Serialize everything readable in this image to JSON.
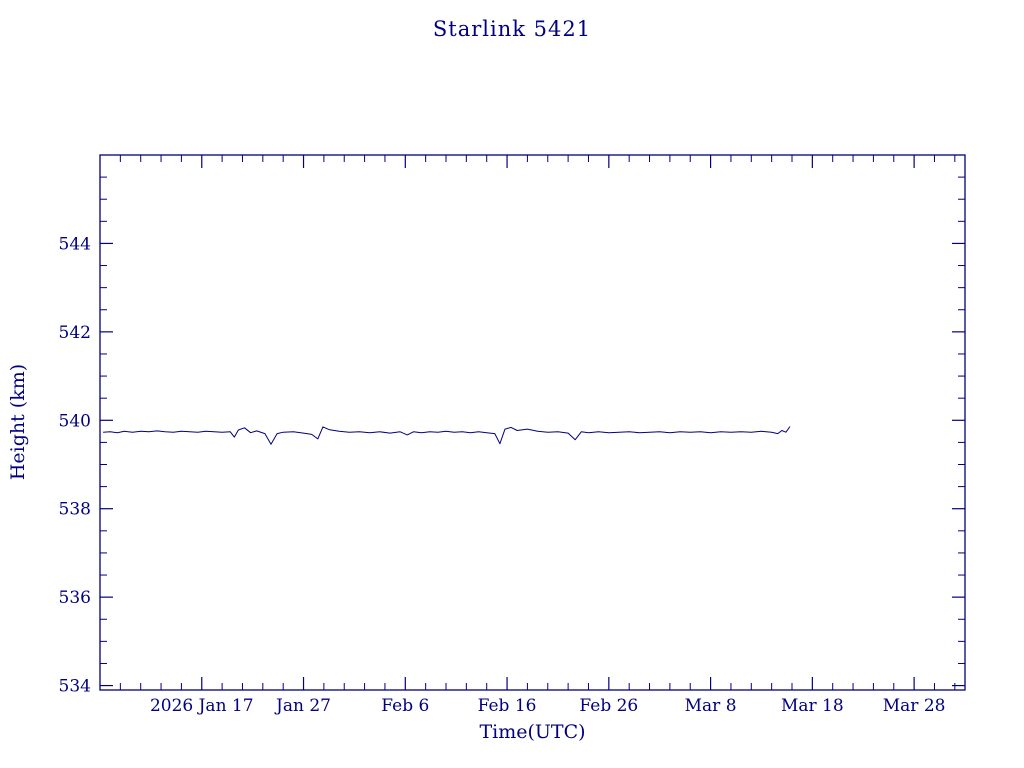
{
  "chart_data": {
    "type": "line",
    "title": "Starlink 5421",
    "xlabel": "Time(UTC)",
    "ylabel": "Height (km)",
    "line_color": "#000080",
    "background": "#ffffff",
    "grid": false,
    "legend": "none",
    "x_domain_days": [
      0,
      85
    ],
    "x_ticks": [
      {
        "day": 10,
        "label": "2026 Jan 17"
      },
      {
        "day": 20,
        "label": "Jan 27"
      },
      {
        "day": 30,
        "label": "Feb  6"
      },
      {
        "day": 40,
        "label": "Feb 16"
      },
      {
        "day": 50,
        "label": "Feb 26"
      },
      {
        "day": 60,
        "label": "Mar  8"
      },
      {
        "day": 70,
        "label": "Mar 18"
      },
      {
        "day": 80,
        "label": "Mar 28"
      }
    ],
    "x_minor_tick_days": 2,
    "ylim": [
      533.9,
      546.0
    ],
    "y_ticks": [
      534,
      536,
      538,
      540,
      542,
      544
    ],
    "y_minor_tick": 0.5,
    "series": [
      {
        "name": "height",
        "points": [
          [
            0.3,
            539.73
          ],
          [
            1.0,
            539.74
          ],
          [
            1.7,
            539.72
          ],
          [
            2.4,
            539.75
          ],
          [
            3.2,
            539.73
          ],
          [
            4.0,
            539.75
          ],
          [
            4.8,
            539.74
          ],
          [
            5.6,
            539.76
          ],
          [
            6.4,
            539.74
          ],
          [
            7.2,
            539.73
          ],
          [
            8.0,
            539.75
          ],
          [
            8.8,
            539.74
          ],
          [
            9.6,
            539.73
          ],
          [
            10.4,
            539.75
          ],
          [
            11.2,
            539.74
          ],
          [
            12.0,
            539.73
          ],
          [
            12.8,
            539.74
          ],
          [
            13.2,
            539.62
          ],
          [
            13.6,
            539.78
          ],
          [
            14.2,
            539.83
          ],
          [
            14.8,
            539.72
          ],
          [
            15.4,
            539.76
          ],
          [
            16.2,
            539.7
          ],
          [
            16.8,
            539.46
          ],
          [
            17.4,
            539.7
          ],
          [
            18.0,
            539.73
          ],
          [
            19.0,
            539.74
          ],
          [
            20.0,
            539.71
          ],
          [
            20.8,
            539.68
          ],
          [
            21.4,
            539.58
          ],
          [
            21.9,
            539.85
          ],
          [
            22.5,
            539.79
          ],
          [
            23.5,
            539.75
          ],
          [
            24.5,
            539.73
          ],
          [
            25.5,
            539.74
          ],
          [
            26.5,
            539.72
          ],
          [
            27.5,
            539.74
          ],
          [
            28.5,
            539.71
          ],
          [
            29.5,
            539.74
          ],
          [
            30.2,
            539.67
          ],
          [
            30.8,
            539.74
          ],
          [
            31.6,
            539.72
          ],
          [
            32.4,
            539.74
          ],
          [
            33.2,
            539.73
          ],
          [
            34.0,
            539.75
          ],
          [
            34.8,
            539.73
          ],
          [
            35.6,
            539.74
          ],
          [
            36.4,
            539.72
          ],
          [
            37.2,
            539.74
          ],
          [
            38.0,
            539.72
          ],
          [
            38.8,
            539.7
          ],
          [
            39.3,
            539.47
          ],
          [
            39.8,
            539.8
          ],
          [
            40.4,
            539.84
          ],
          [
            41.0,
            539.77
          ],
          [
            42.0,
            539.8
          ],
          [
            43.0,
            539.75
          ],
          [
            44.0,
            539.73
          ],
          [
            45.0,
            539.74
          ],
          [
            46.0,
            539.71
          ],
          [
            46.7,
            539.56
          ],
          [
            47.3,
            539.74
          ],
          [
            48.0,
            539.72
          ],
          [
            49.0,
            539.74
          ],
          [
            50.0,
            539.72
          ],
          [
            51.0,
            539.73
          ],
          [
            52.0,
            539.74
          ],
          [
            53.0,
            539.72
          ],
          [
            54.0,
            539.73
          ],
          [
            55.0,
            539.74
          ],
          [
            56.0,
            539.72
          ],
          [
            57.0,
            539.74
          ],
          [
            58.0,
            539.73
          ],
          [
            59.0,
            539.74
          ],
          [
            60.0,
            539.72
          ],
          [
            61.0,
            539.74
          ],
          [
            62.0,
            539.73
          ],
          [
            63.0,
            539.74
          ],
          [
            64.0,
            539.73
          ],
          [
            65.0,
            539.75
          ],
          [
            66.0,
            539.73
          ],
          [
            66.6,
            539.7
          ],
          [
            67.0,
            539.77
          ],
          [
            67.4,
            539.73
          ],
          [
            67.8,
            539.86
          ]
        ]
      }
    ]
  }
}
